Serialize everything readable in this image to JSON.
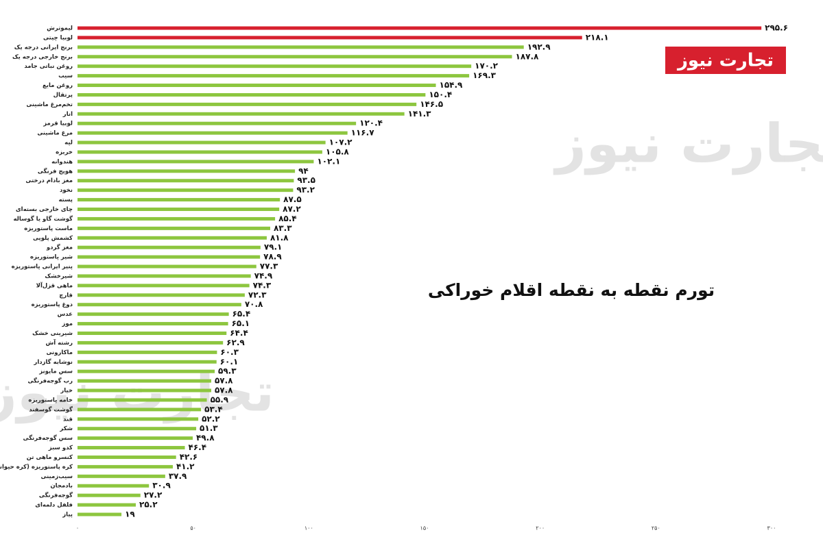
{
  "logo": "تجارت نیوز",
  "chart_data": {
    "type": "hbar",
    "title": "تورم نقطه به نقطه اقلام خوراکی",
    "categories": [
      "لیموترش",
      "لوبیا چیتی",
      "برنج ایرانی درجه یک",
      "برنج خارجی درجه یک",
      "روغن نباتی جامد",
      "سیب",
      "روغن مایع",
      "پرتقال",
      "تخم‌مرغ ماشینی",
      "انار",
      "لوبیا قرمز",
      "مرغ ماشینی",
      "لپه",
      "خربزه",
      "هندوانه",
      "هویج فرنگی",
      "مغز بادام درختی",
      "نخود",
      "پسته",
      "چای خارجی بسته‌ای",
      "گوشت گاو یا گوساله",
      "ماست پاستوریزه",
      "کشمش پلویی",
      "مغز گردو",
      "شیر پاستوریزه",
      "پنیر ایرانی پاستوریزه",
      "شیرخشک",
      "ماهی قزل‌آلا",
      "قارچ",
      "دوغ پاستوریزه",
      "عدس",
      "موز",
      "شیرینی خشک",
      "رشته آش",
      "ماکارونی",
      "نوشابه گازدار",
      "سس مایونز",
      "رب گوجه‌فرنگی",
      "خیار",
      "خامه پاستوریزه",
      "گوشت گوسفند",
      "قند",
      "شکر",
      "سس گوجه‌فرنگی",
      "کدو سبز",
      "کنسرو ماهی تن",
      "کره پاستوریزه (کره حیوانی)",
      "سیب‌زمینی",
      "بادمجان",
      "گوجه‌فرنگی",
      "فلفل دلمه‌ای",
      "پیاز"
    ],
    "values": [
      295.6,
      218.1,
      192.9,
      187.8,
      170.2,
      169.3,
      154.9,
      150.4,
      146.5,
      141.3,
      120.4,
      116.7,
      107.2,
      105.8,
      102.1,
      94,
      93.5,
      93.2,
      87.5,
      87.2,
      85.4,
      83.3,
      81.8,
      79.1,
      78.9,
      77.3,
      74.9,
      74.3,
      72.3,
      70.8,
      65.4,
      65.1,
      64.4,
      62.9,
      60.3,
      60.1,
      59.3,
      57.8,
      57.8,
      55.9,
      53.4,
      52.2,
      51.3,
      49.8,
      46.4,
      42.6,
      41.2,
      37.9,
      30.9,
      27.2,
      25.2,
      19
    ],
    "value_labels": [
      "۲۹۵.۶",
      "۲۱۸.۱",
      "۱۹۲.۹",
      "۱۸۷.۸",
      "۱۷۰.۲",
      "۱۶۹.۳",
      "۱۵۴.۹",
      "۱۵۰.۴",
      "۱۴۶.۵",
      "۱۴۱.۳",
      "۱۲۰.۴",
      "۱۱۶.۷",
      "۱۰۷.۲",
      "۱۰۵.۸",
      "۱۰۲.۱",
      "۹۴",
      "۹۳.۵",
      "۹۳.۲",
      "۸۷.۵",
      "۸۷.۲",
      "۸۵.۴",
      "۸۳.۳",
      "۸۱.۸",
      "۷۹.۱",
      "۷۸.۹",
      "۷۷.۳",
      "۷۴.۹",
      "۷۴.۳",
      "۷۲.۳",
      "۷۰.۸",
      "۶۵.۴",
      "۶۵.۱",
      "۶۴.۴",
      "۶۲.۹",
      "۶۰.۳",
      "۶۰.۱",
      "۵۹.۳",
      "۵۷.۸",
      "۵۷.۸",
      "۵۵.۹",
      "۵۳.۴",
      "۵۲.۲",
      "۵۱.۳",
      "۴۹.۸",
      "۴۶.۴",
      "۴۲.۶",
      "۴۱.۲",
      "۳۷.۹",
      "۳۰.۹",
      "۲۷.۲",
      "۲۵.۲",
      "۱۹"
    ],
    "colors": [
      "#d7202e",
      "#d7202e",
      "#8dc63f",
      "#8dc63f",
      "#8dc63f",
      "#8dc63f",
      "#8dc63f",
      "#8dc63f",
      "#8dc63f",
      "#8dc63f",
      "#8dc63f",
      "#8dc63f",
      "#8dc63f",
      "#8dc63f",
      "#8dc63f",
      "#8dc63f",
      "#8dc63f",
      "#8dc63f",
      "#8dc63f",
      "#8dc63f",
      "#8dc63f",
      "#8dc63f",
      "#8dc63f",
      "#8dc63f",
      "#8dc63f",
      "#8dc63f",
      "#8dc63f",
      "#8dc63f",
      "#8dc63f",
      "#8dc63f",
      "#8dc63f",
      "#8dc63f",
      "#8dc63f",
      "#8dc63f",
      "#8dc63f",
      "#8dc63f",
      "#8dc63f",
      "#8dc63f",
      "#8dc63f",
      "#8dc63f",
      "#8dc63f",
      "#8dc63f",
      "#8dc63f",
      "#8dc63f",
      "#8dc63f",
      "#8dc63f",
      "#8dc63f",
      "#8dc63f",
      "#8dc63f",
      "#8dc63f",
      "#8dc63f",
      "#8dc63f"
    ],
    "xlim": [
      0,
      300
    ],
    "xticks": [
      {
        "value": 0,
        "label": "۰"
      },
      {
        "value": 50,
        "label": "۵۰"
      },
      {
        "value": 100,
        "label": "۱۰۰"
      },
      {
        "value": 150,
        "label": "۱۵۰"
      },
      {
        "value": 200,
        "label": "۲۰۰"
      },
      {
        "value": 250,
        "label": "۲۵۰"
      },
      {
        "value": 300,
        "label": "۳۰۰"
      }
    ],
    "grid": false
  }
}
